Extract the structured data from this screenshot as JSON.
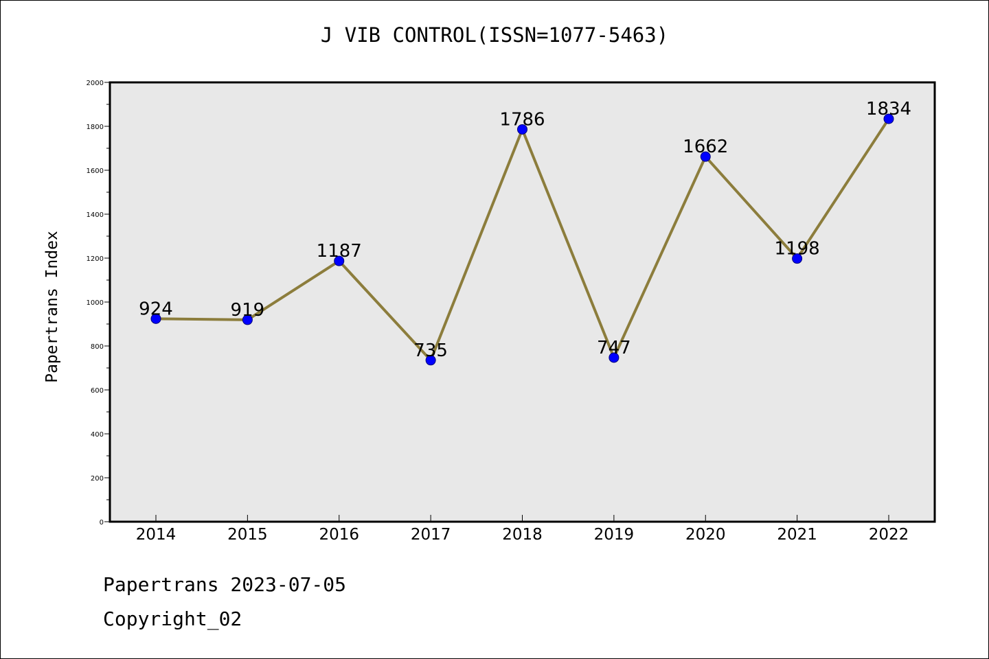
{
  "chart_data": {
    "type": "line",
    "title": "J VIB CONTROL(ISSN=1077-5463)",
    "xlabel": "",
    "ylabel": "Papertrans Index",
    "categories": [
      "2014",
      "2015",
      "2016",
      "2017",
      "2018",
      "2019",
      "2020",
      "2021",
      "2022"
    ],
    "series": [
      {
        "values": [
          924,
          919,
          1187,
          735,
          1786,
          747,
          1662,
          1198,
          1834
        ]
      }
    ],
    "data_labels": [
      "924",
      "919",
      "1187",
      "735",
      "1786",
      "747",
      "1662",
      "1198",
      "1834"
    ],
    "ylim": [
      0,
      2000
    ],
    "yticks": [
      0,
      200,
      400,
      600,
      800,
      1000,
      1200,
      1400,
      1600,
      1800,
      2000
    ],
    "ytick_labels": [
      "0",
      "200",
      "400",
      "600",
      "800",
      "1000",
      "1200",
      "1400",
      "1600",
      "1800",
      "2000"
    ],
    "y_minor_step": 100,
    "grid": false,
    "legend": "none",
    "colors": {
      "line": "#8c7d3c",
      "marker": "#0000ff",
      "plot_background": "#e8e8e8"
    }
  },
  "footer": {
    "line1": "Papertrans 2023-07-05",
    "line2": "Copyright_02"
  }
}
